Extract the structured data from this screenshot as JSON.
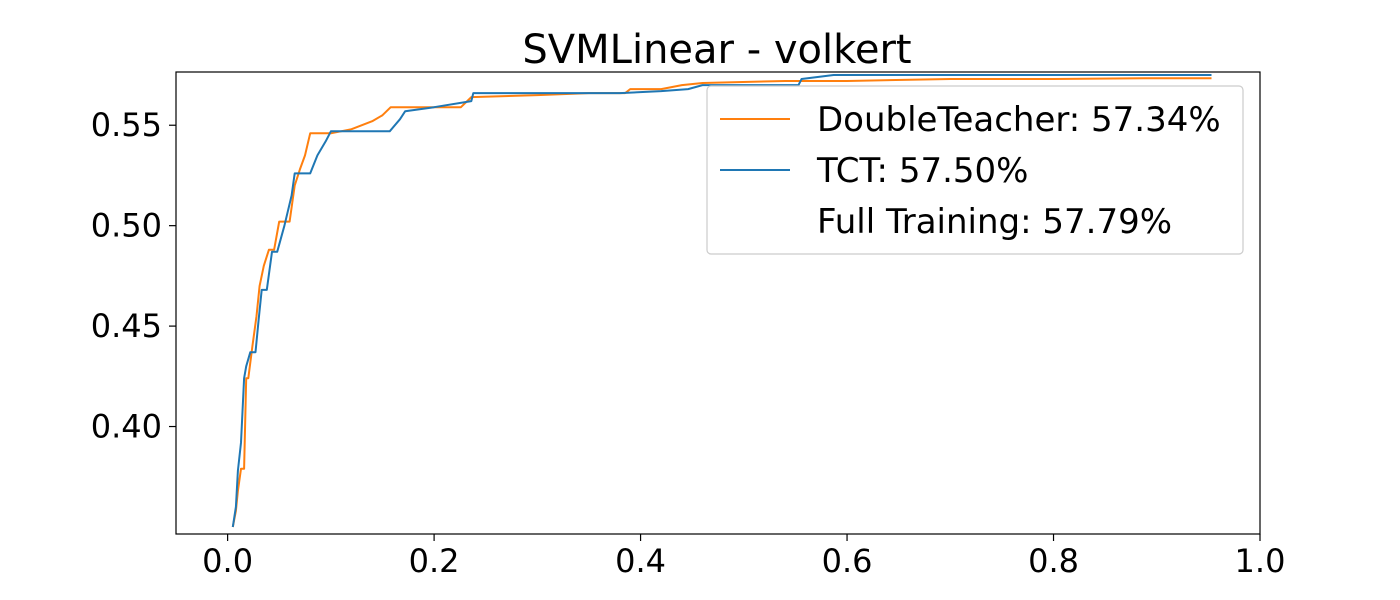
{
  "chart_data": {
    "type": "line",
    "title": "SVMLinear - volkert",
    "xlabel": "",
    "ylabel": "",
    "xlim": [
      -0.05,
      1.0
    ],
    "ylim": [
      0.3465,
      0.5765
    ],
    "x_ticks": [
      "0.0",
      "0.2",
      "0.4",
      "0.6",
      "0.8",
      "1.0"
    ],
    "x_tick_values": [
      0.0,
      0.2,
      0.4,
      0.6,
      0.8,
      1.0
    ],
    "y_ticks": [
      "0.40",
      "0.45",
      "0.50",
      "0.55"
    ],
    "y_tick_values": [
      0.4,
      0.45,
      0.5,
      0.55
    ],
    "grid": false,
    "legend_position": "top-right",
    "series": [
      {
        "name": "DoubleTeacher: 57.34%",
        "color": "#ff7f0e",
        "x": [
          0.005,
          0.008,
          0.01,
          0.013,
          0.016,
          0.018,
          0.02,
          0.024,
          0.028,
          0.031,
          0.035,
          0.04,
          0.045,
          0.05,
          0.055,
          0.06,
          0.065,
          0.07,
          0.075,
          0.08,
          0.1,
          0.12,
          0.14,
          0.15,
          0.158,
          0.17,
          0.2,
          0.226,
          0.236,
          0.3,
          0.35,
          0.385,
          0.39,
          0.42,
          0.44,
          0.46,
          0.54,
          0.6,
          0.7,
          0.8,
          0.9,
          0.953
        ],
        "y": [
          0.35,
          0.358,
          0.368,
          0.379,
          0.379,
          0.424,
          0.424,
          0.44,
          0.455,
          0.47,
          0.48,
          0.488,
          0.488,
          0.502,
          0.502,
          0.502,
          0.52,
          0.528,
          0.535,
          0.546,
          0.546,
          0.548,
          0.552,
          0.555,
          0.559,
          0.559,
          0.559,
          0.559,
          0.564,
          0.565,
          0.566,
          0.566,
          0.568,
          0.568,
          0.57,
          0.571,
          0.572,
          0.572,
          0.573,
          0.573,
          0.5734,
          0.5734
        ]
      },
      {
        "name": "TCT: 57.50%",
        "color": "#1f77b4",
        "x": [
          0.005,
          0.008,
          0.01,
          0.013,
          0.016,
          0.018,
          0.022,
          0.027,
          0.03,
          0.033,
          0.038,
          0.043,
          0.048,
          0.055,
          0.062,
          0.065,
          0.068,
          0.08,
          0.087,
          0.095,
          0.1,
          0.157,
          0.167,
          0.172,
          0.2,
          0.236,
          0.238,
          0.3,
          0.38,
          0.42,
          0.446,
          0.46,
          0.553,
          0.556,
          0.587,
          0.7,
          0.8,
          0.953
        ],
        "y": [
          0.35,
          0.36,
          0.378,
          0.392,
          0.424,
          0.43,
          0.437,
          0.437,
          0.453,
          0.468,
          0.468,
          0.487,
          0.487,
          0.5,
          0.515,
          0.526,
          0.526,
          0.526,
          0.535,
          0.542,
          0.547,
          0.547,
          0.553,
          0.557,
          0.559,
          0.562,
          0.566,
          0.566,
          0.566,
          0.567,
          0.568,
          0.57,
          0.57,
          0.573,
          0.575,
          0.575,
          0.575,
          0.575
        ]
      },
      {
        "name": "Full Training: 57.79%",
        "color": "#ffffff",
        "x": [],
        "y": []
      }
    ]
  }
}
